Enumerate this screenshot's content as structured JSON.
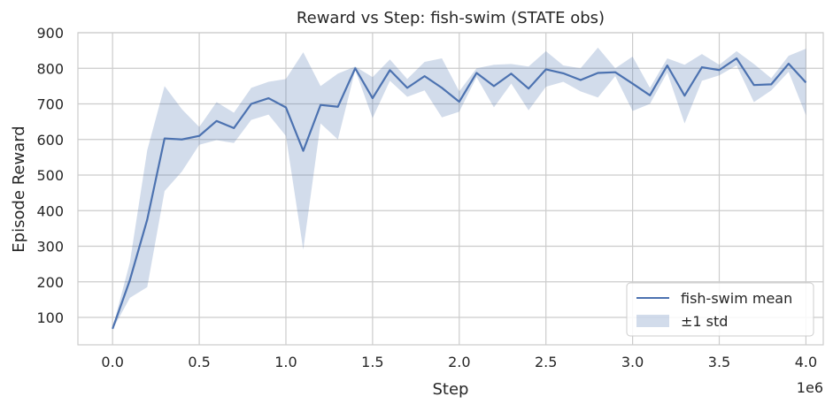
{
  "chart_data": {
    "type": "line",
    "title": "Reward vs Step: fish-swim (STATE obs)",
    "xlabel": "Step",
    "ylabel": "Episode Reward",
    "x_multiplier_label": "1e6",
    "xlim": [
      -0.2,
      4.1
    ],
    "ylim": [
      23,
      900
    ],
    "x_ticks": [
      0.0,
      0.5,
      1.0,
      1.5,
      2.0,
      2.5,
      3.0,
      3.5,
      4.0
    ],
    "x_tick_labels": [
      "0.0",
      "0.5",
      "1.0",
      "1.5",
      "2.0",
      "2.5",
      "3.0",
      "3.5",
      "4.0"
    ],
    "y_ticks": [
      100,
      200,
      300,
      400,
      500,
      600,
      700,
      800,
      900
    ],
    "y_tick_labels": [
      "100",
      "200",
      "300",
      "400",
      "500",
      "600",
      "700",
      "800",
      "900"
    ],
    "grid": true,
    "legend_position": "bottom-right",
    "series": [
      {
        "name": "fish-swim mean",
        "color": "#4c72b0",
        "x": [
          0.0,
          0.1,
          0.2,
          0.3,
          0.4,
          0.5,
          0.6,
          0.7,
          0.8,
          0.9,
          1.0,
          1.1,
          1.2,
          1.3,
          1.4,
          1.5,
          1.6,
          1.7,
          1.8,
          1.9,
          2.0,
          2.1,
          2.2,
          2.3,
          2.4,
          2.5,
          2.6,
          2.7,
          2.8,
          2.9,
          3.0,
          3.1,
          3.2,
          3.3,
          3.4,
          3.5,
          3.6,
          3.7,
          3.8,
          3.9,
          4.0
        ],
        "values": [
          68,
          205,
          375,
          603,
          600,
          610,
          652,
          632,
          700,
          716,
          690,
          568,
          697,
          692,
          800,
          716,
          795,
          745,
          778,
          745,
          706,
          787,
          750,
          785,
          743,
          797,
          786,
          767,
          787,
          789,
          757,
          724,
          808,
          723,
          803,
          795,
          828,
          753,
          755,
          813,
          760
        ]
      },
      {
        "name": "±1 std",
        "type": "band",
        "color": "#4c72b0",
        "opacity": 0.25,
        "x": [
          0.0,
          0.1,
          0.2,
          0.3,
          0.4,
          0.5,
          0.6,
          0.7,
          0.8,
          0.9,
          1.0,
          1.1,
          1.2,
          1.3,
          1.4,
          1.5,
          1.6,
          1.7,
          1.8,
          1.9,
          2.0,
          2.1,
          2.2,
          2.3,
          2.4,
          2.5,
          2.6,
          2.7,
          2.8,
          2.9,
          3.0,
          3.1,
          3.2,
          3.3,
          3.4,
          3.5,
          3.6,
          3.7,
          3.8,
          3.9,
          4.0
        ],
        "upper": [
          70,
          255,
          570,
          750,
          685,
          635,
          705,
          675,
          745,
          762,
          770,
          845,
          750,
          785,
          805,
          775,
          825,
          770,
          818,
          828,
          735,
          800,
          810,
          812,
          805,
          848,
          808,
          800,
          858,
          800,
          833,
          745,
          828,
          810,
          840,
          810,
          848,
          812,
          772,
          835,
          855
        ],
        "lower": [
          66,
          155,
          185,
          455,
          510,
          585,
          598,
          590,
          655,
          670,
          610,
          290,
          645,
          600,
          795,
          660,
          765,
          720,
          738,
          662,
          678,
          775,
          690,
          757,
          682,
          748,
          762,
          735,
          718,
          778,
          680,
          700,
          788,
          645,
          765,
          780,
          808,
          705,
          738,
          790,
          668
        ]
      }
    ]
  }
}
